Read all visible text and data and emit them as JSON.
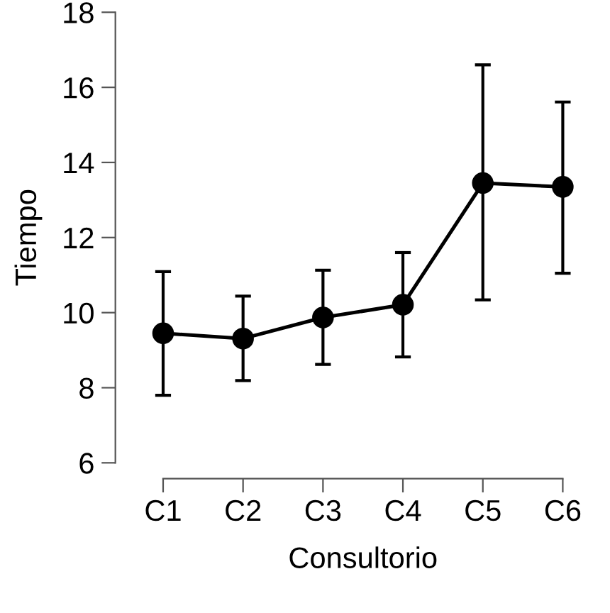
{
  "chart_data": {
    "type": "line",
    "xlabel": "Consultorio",
    "ylabel": "Tiempo",
    "categories": [
      "C1",
      "C2",
      "C3",
      "C4",
      "C5",
      "C6"
    ],
    "values": [
      9.45,
      9.31,
      9.87,
      10.21,
      13.45,
      13.35
    ],
    "errors": [
      [
        7.8,
        11.09
      ],
      [
        8.19,
        10.44
      ],
      [
        8.62,
        11.13
      ],
      [
        8.82,
        11.6
      ],
      [
        10.34,
        16.6
      ],
      [
        11.05,
        15.61
      ]
    ],
    "color": "#000000",
    "marker": "circle",
    "line_style": "solid",
    "ylim": [
      6,
      18
    ],
    "yticks": [
      6,
      8,
      10,
      12,
      14,
      16,
      18
    ],
    "grid": false,
    "legend": false
  }
}
